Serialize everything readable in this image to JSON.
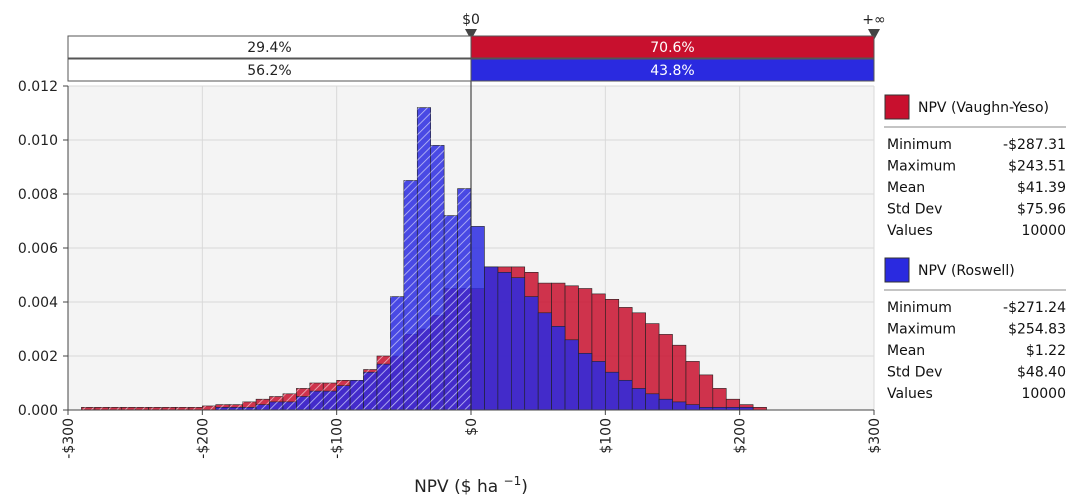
{
  "chart_data": {
    "type": "histogram",
    "xlabel": "NPV ($ ha ",
    "xlabel_sup": "−1",
    "xlabel_close": ")",
    "xlim": [
      -300,
      300
    ],
    "ylim": [
      0,
      0.012
    ],
    "x_ticks": [
      -300,
      -200,
      -100,
      0,
      100,
      200,
      300
    ],
    "x_tick_labels": [
      "-$300",
      "-$200",
      "-$100",
      "$0",
      "$100",
      "$200",
      "$300"
    ],
    "y_ticks": [
      0,
      0.002,
      0.004,
      0.006,
      0.008,
      0.01,
      0.012
    ],
    "y_tick_labels": [
      "0.000",
      "0.002",
      "0.004",
      "0.006",
      "0.008",
      "0.010",
      "0.012"
    ],
    "grid": true,
    "bin_width": 10,
    "bin_start": -290,
    "colors": {
      "series1": "#c8102e",
      "series2": "#2a2ae0",
      "grid": "#d9d9d9"
    },
    "series": [
      {
        "name": "NPV (Vaughn-Yeso)",
        "color": "#c8102e",
        "values": [
          0.0001,
          0.0001,
          0.0001,
          0.0001,
          0.0001,
          0.0001,
          0.0001,
          0.0001,
          0.0001,
          0.00015,
          0.0002,
          0.0002,
          0.0003,
          0.0004,
          0.0005,
          0.0006,
          0.0008,
          0.001,
          0.001,
          0.0011,
          0.0011,
          0.0015,
          0.002,
          0.002,
          0.0028,
          0.003,
          0.0035,
          0.0045,
          0.0045,
          0.0045,
          0.0053,
          0.0053,
          0.0053,
          0.0051,
          0.0047,
          0.0047,
          0.0046,
          0.0045,
          0.0043,
          0.0041,
          0.0038,
          0.0036,
          0.0032,
          0.0028,
          0.0024,
          0.0018,
          0.0013,
          0.0008,
          0.0004,
          0.0002,
          0.0001,
          0,
          0,
          0
        ]
      },
      {
        "name": "NPV (Roswell)",
        "color": "#2a2ae0",
        "values": [
          0,
          0,
          0,
          0,
          0,
          0,
          0,
          0,
          0,
          0,
          0.0001,
          0.0001,
          0.0001,
          0.0002,
          0.0003,
          0.0003,
          0.0005,
          0.0007,
          0.0007,
          0.0009,
          0.0011,
          0.0014,
          0.0017,
          0.0042,
          0.0085,
          0.0112,
          0.0098,
          0.0072,
          0.0082,
          0.0068,
          0.0053,
          0.0051,
          0.0049,
          0.0042,
          0.0036,
          0.0031,
          0.0026,
          0.0021,
          0.0018,
          0.0014,
          0.0011,
          0.0008,
          0.0006,
          0.0004,
          0.0003,
          0.0002,
          0.0001,
          0.0001,
          0.0001,
          0.0001,
          0,
          0,
          0,
          0
        ]
      }
    ],
    "threshold": {
      "left_label": "$0",
      "right_label": "+∞",
      "bands": [
        {
          "left": "29.4%",
          "right": "70.6%",
          "right_color": "#c8102e"
        },
        {
          "left": "56.2%",
          "right": "43.8%",
          "right_color": "#2a2ae0"
        }
      ]
    },
    "legend": {
      "placement": "right",
      "entries": [
        {
          "name": "NPV (Vaughn-Yeso)",
          "color": "#c8102e",
          "stats": [
            [
              "Minimum",
              "-$287.31"
            ],
            [
              "Maximum",
              "$243.51"
            ],
            [
              "Mean",
              "$41.39"
            ],
            [
              "Std Dev",
              "$75.96"
            ],
            [
              "Values",
              "10000"
            ]
          ]
        },
        {
          "name": "NPV (Roswell)",
          "color": "#2a2ae0",
          "stats": [
            [
              "Minimum",
              "-$271.24"
            ],
            [
              "Maximum",
              "$254.83"
            ],
            [
              "Mean",
              "$1.22"
            ],
            [
              "Std Dev",
              "$48.40"
            ],
            [
              "Values",
              "10000"
            ]
          ]
        }
      ]
    }
  }
}
